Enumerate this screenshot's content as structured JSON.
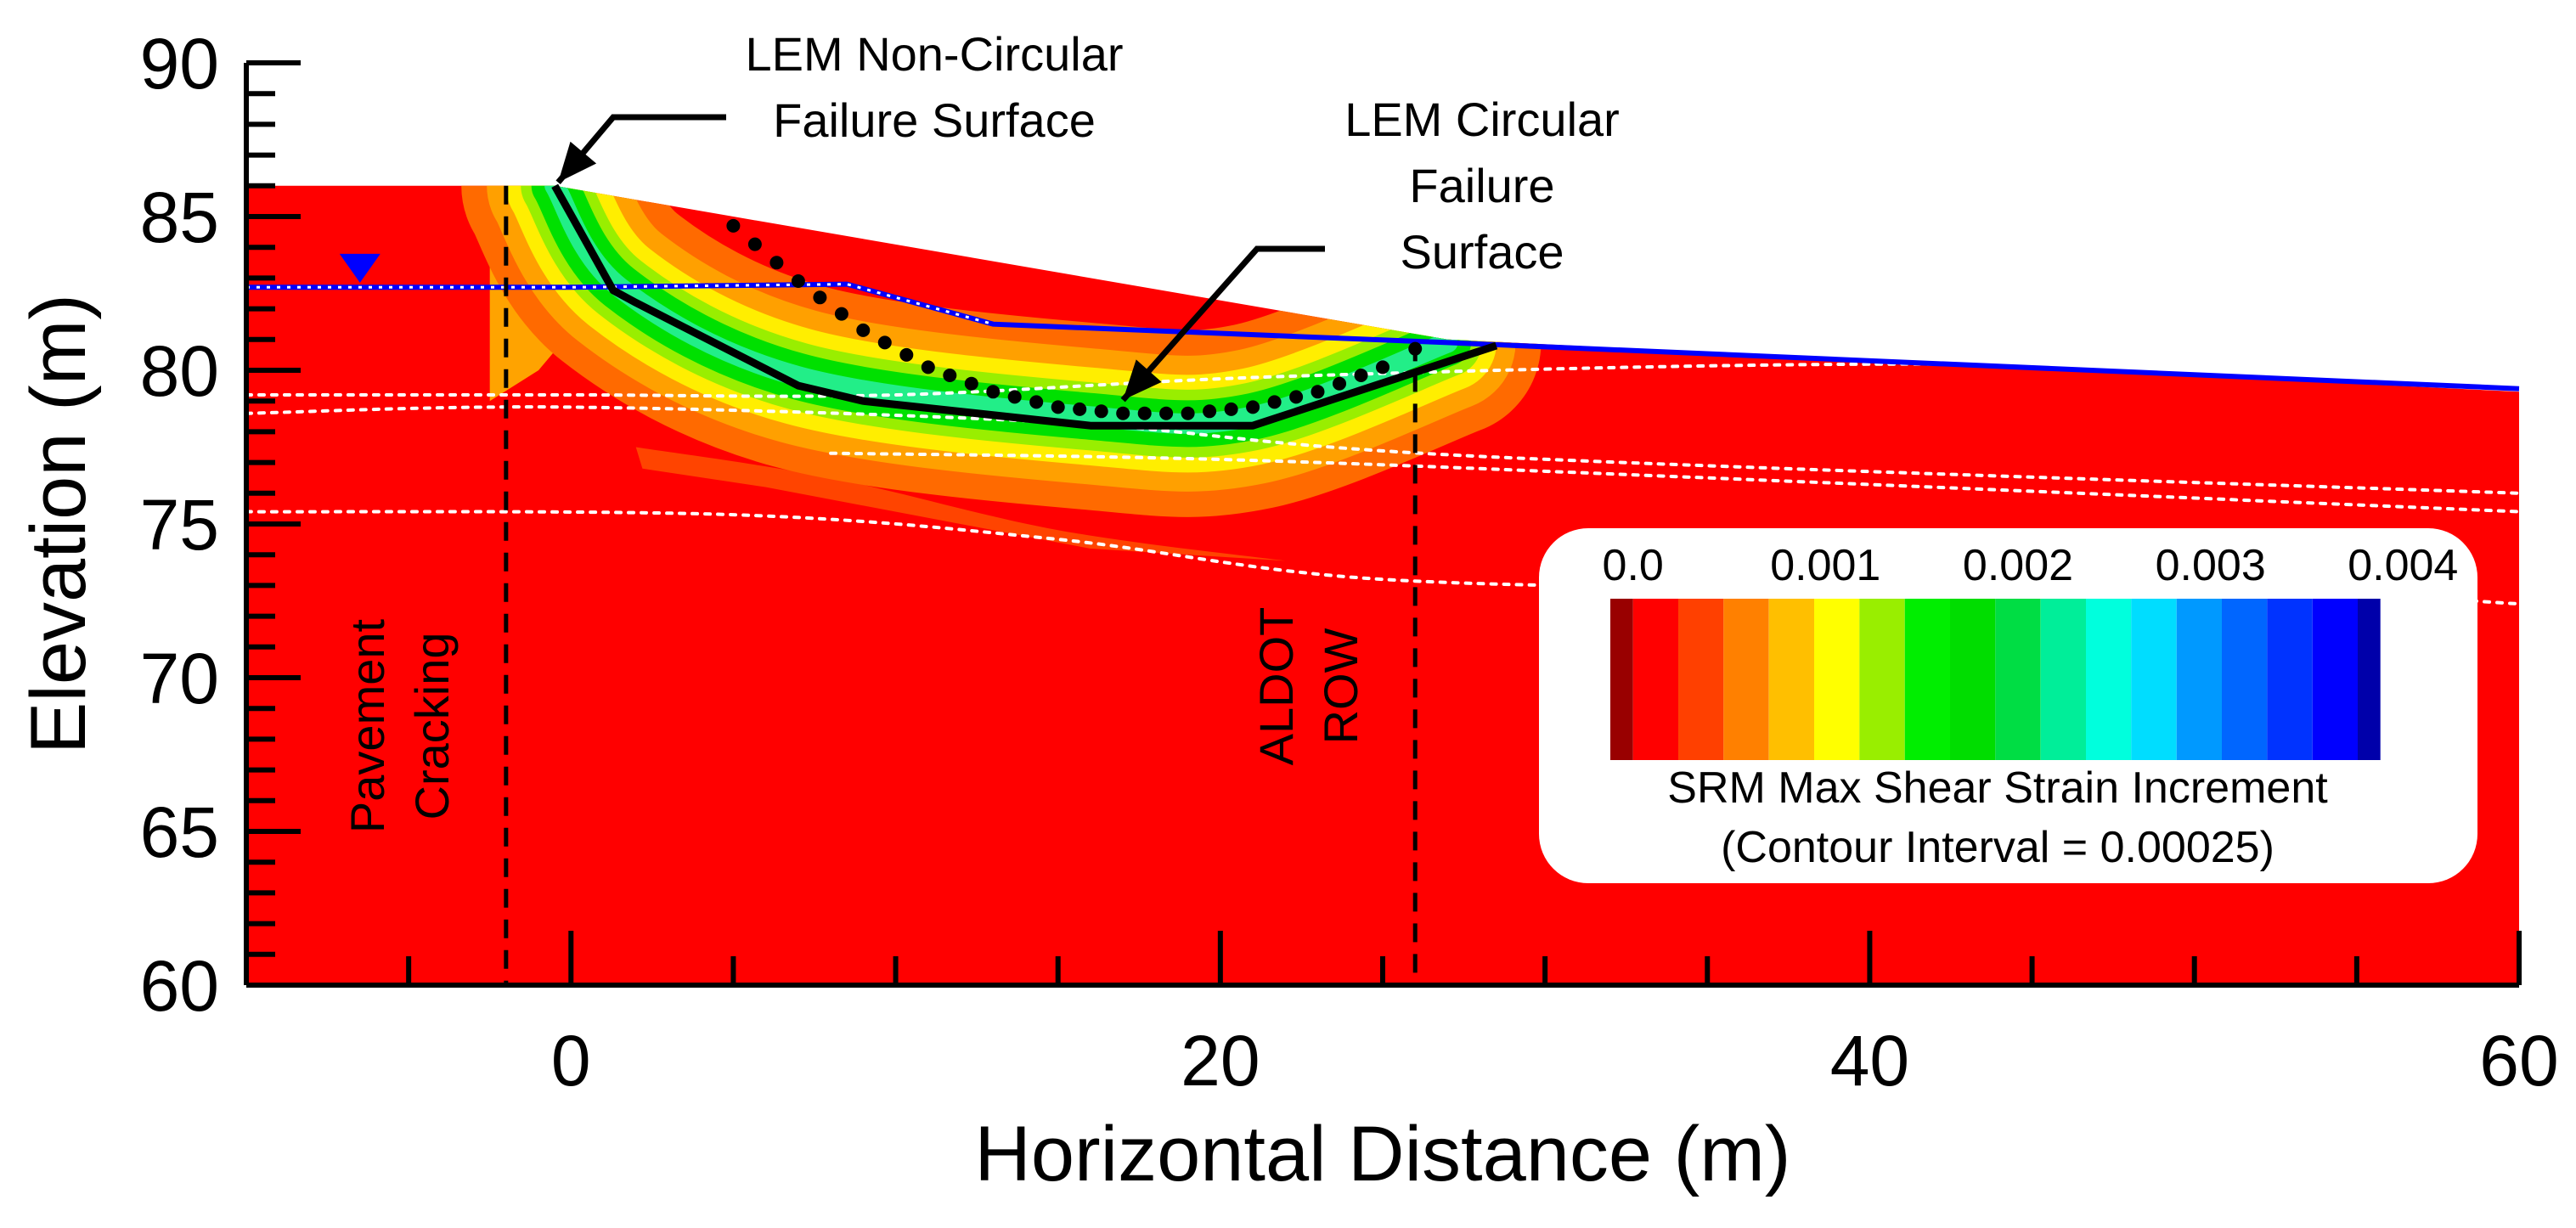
{
  "chart_data": {
    "type": "contour",
    "xlabel": "Horizontal Distance (m)",
    "ylabel": "Elevation (m)",
    "xlim": [
      -10,
      60
    ],
    "ylim": [
      60,
      90
    ],
    "xticks": [
      0,
      20,
      40,
      60
    ],
    "yticks": [
      60,
      65,
      70,
      75,
      80,
      85,
      90
    ],
    "x_minor_step": 5,
    "y_minor_step": 1,
    "ground_surface": [
      {
        "x": -10,
        "y": 86
      },
      {
        "x": -0.5,
        "y": 86
      },
      {
        "x": 27,
        "y": 81
      },
      {
        "x": 60,
        "y": 79.3
      },
      {
        "x": 60,
        "y": 60
      },
      {
        "x": -10,
        "y": 60
      }
    ],
    "water_table": [
      {
        "x": -10,
        "y": 82.7
      },
      {
        "x": 0,
        "y": 82.7
      },
      {
        "x": 8.5,
        "y": 82.8
      },
      {
        "x": 13,
        "y": 81.5
      },
      {
        "x": 27,
        "y": 80.9
      },
      {
        "x": 60,
        "y": 79.4
      }
    ],
    "water_table_marker": {
      "x": -6.5,
      "y": 83.4
    },
    "layer_boundaries": [
      [
        {
          "x": -10,
          "y": 79.2
        },
        {
          "x": 0,
          "y": 79.2
        },
        {
          "x": 10,
          "y": 79.2
        },
        {
          "x": 22,
          "y": 79.8
        },
        {
          "x": 40,
          "y": 80.2
        },
        {
          "x": 60,
          "y": 80.0
        }
      ],
      [
        {
          "x": -10,
          "y": 78.6
        },
        {
          "x": 0,
          "y": 78.8
        },
        {
          "x": 15,
          "y": 78.3
        },
        {
          "x": 28,
          "y": 77.2
        },
        {
          "x": 60,
          "y": 76.0
        }
      ],
      [
        {
          "x": 8,
          "y": 77.3
        },
        {
          "x": 20,
          "y": 77.1
        },
        {
          "x": 35,
          "y": 76.5
        },
        {
          "x": 60,
          "y": 75.4
        }
      ],
      [
        {
          "x": -10,
          "y": 75.4
        },
        {
          "x": 5,
          "y": 75.3
        },
        {
          "x": 15,
          "y": 74.5
        },
        {
          "x": 25,
          "y": 73.2
        },
        {
          "x": 40,
          "y": 72.9
        },
        {
          "x": 50,
          "y": 73.0
        },
        {
          "x": 60,
          "y": 72.4
        }
      ]
    ],
    "lem_noncircular_surface": [
      {
        "x": -0.5,
        "y": 86
      },
      {
        "x": 1.3,
        "y": 82.6
      },
      {
        "x": 2,
        "y": 82.2
      },
      {
        "x": 7,
        "y": 79.5
      },
      {
        "x": 9,
        "y": 79
      },
      {
        "x": 16,
        "y": 78.2
      },
      {
        "x": 21,
        "y": 78.2
      },
      {
        "x": 28.5,
        "y": 80.8
      }
    ],
    "lem_circular_surface": [
      {
        "x": 5,
        "y": 84.7
      },
      {
        "x": 7,
        "y": 82.9
      },
      {
        "x": 9,
        "y": 81.3
      },
      {
        "x": 11,
        "y": 80.1
      },
      {
        "x": 13,
        "y": 79.3
      },
      {
        "x": 15,
        "y": 78.8
      },
      {
        "x": 17,
        "y": 78.6
      },
      {
        "x": 19,
        "y": 78.6
      },
      {
        "x": 21,
        "y": 78.8
      },
      {
        "x": 23,
        "y": 79.3
      },
      {
        "x": 25,
        "y": 80.1
      },
      {
        "x": 26,
        "y": 80.7
      }
    ],
    "shear_band": [
      {
        "x": -0.5,
        "y": 86
      },
      {
        "x": 1.5,
        "y": 82.7
      },
      {
        "x": 7,
        "y": 79.8
      },
      {
        "x": 16,
        "y": 78.5
      },
      {
        "x": 21,
        "y": 78.5
      },
      {
        "x": 27,
        "y": 80.9
      }
    ],
    "marker_lines": [
      {
        "x": -2,
        "label": "Pavement\nCracking"
      },
      {
        "x": 26,
        "label": "ALDOT\nROW"
      }
    ],
    "annotations": [
      {
        "text": "LEM Non-Circular\nFailure Surface",
        "arrow_to": {
          "x": -0.5,
          "y": 86
        }
      },
      {
        "text": "LEM Circular\nFailure\nSurface",
        "arrow_to": {
          "x": 17,
          "y": 78.7
        }
      }
    ],
    "colorbar": {
      "title": "SRM Max Shear Strain Increment",
      "subtitle": "(Contour Interval = 0.00025)",
      "tick_labels": [
        "0.0",
        "0.001",
        "0.002",
        "0.003",
        "0.004"
      ],
      "range": [
        0,
        0.004
      ],
      "colors": [
        "#990000",
        "#ff0000",
        "#ff4000",
        "#ff8000",
        "#ffbf00",
        "#ffff00",
        "#99ee00",
        "#00ee00",
        "#00dd00",
        "#00dd44",
        "#00ee99",
        "#00ffdd",
        "#00ddff",
        "#0099ff",
        "#0066ff",
        "#0033ff",
        "#0000ff",
        "#0000aa"
      ]
    },
    "background_color": "#ff0000",
    "water_table_color": "#0000ff"
  }
}
